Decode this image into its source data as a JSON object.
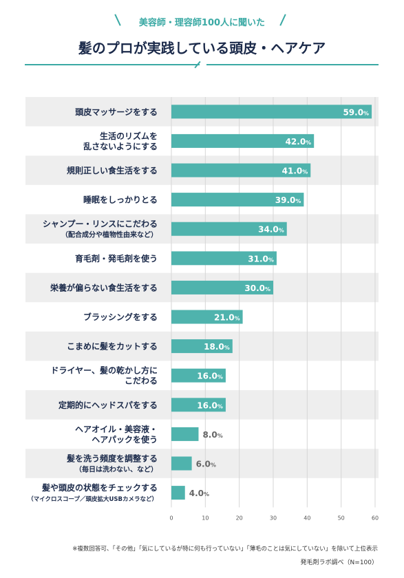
{
  "header": {
    "subtitle": "美容師・理容師100人に聞いた",
    "title": "髪のプロが実践している頭皮・ヘアケア"
  },
  "chart_data": {
    "type": "bar",
    "orientation": "horizontal",
    "categories": [
      [
        "頭皮マッサージをする"
      ],
      [
        "生活のリズムを",
        "乱さないようにする"
      ],
      [
        "規則正しい食生活をする"
      ],
      [
        "睡眠をしっかりとる"
      ],
      [
        "シャンプー・リンスにこだわる",
        "（配合成分や植物性由来など）"
      ],
      [
        "育毛剤・発毛剤を使う"
      ],
      [
        "栄養が偏らない食生活をする"
      ],
      [
        "ブラッシングをする"
      ],
      [
        "こまめに髪をカットする"
      ],
      [
        "ドライヤー、髪の乾かし方に",
        "こだわる"
      ],
      [
        "定期的にヘッドスパをする"
      ],
      [
        "ヘアオイル・美容液・",
        "ヘアパックを使う"
      ],
      [
        "髪を洗う頻度を調整する",
        "（毎日は洗わない、など）"
      ],
      [
        "髪や頭皮の状態をチェックする",
        "（マイクロスコープ／頭皮拡大USBカメラなど）"
      ]
    ],
    "values": [
      59.0,
      42.0,
      41.0,
      39.0,
      34.0,
      31.0,
      30.0,
      21.0,
      18.0,
      16.0,
      16.0,
      8.0,
      6.0,
      4.0
    ],
    "value_unit": "%",
    "xlim": [
      0,
      60
    ],
    "xticks": [
      "0",
      "10",
      "20",
      "30",
      "40",
      "50",
      "60"
    ],
    "bar_color": "#4fb3ad",
    "band_color": "#eeeeee",
    "grid": true
  },
  "footnote": "※複数回答可、「その他」「気にしているが特に何も行っていない」「薄毛のことは気にしていない」を除いて上位表示",
  "source": "発毛剤ラボ調べ（N=100）"
}
